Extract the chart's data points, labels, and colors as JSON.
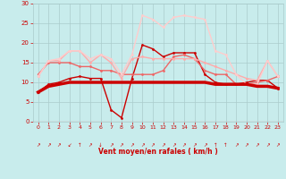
{
  "xlabel": "Vent moyen/en rafales ( km/h )",
  "xlim": [
    -0.5,
    23.5
  ],
  "ylim": [
    0,
    30
  ],
  "yticks": [
    0,
    5,
    10,
    15,
    20,
    25,
    30
  ],
  "xticks": [
    0,
    1,
    2,
    3,
    4,
    5,
    6,
    7,
    8,
    9,
    10,
    11,
    12,
    13,
    14,
    15,
    16,
    17,
    18,
    19,
    20,
    21,
    22,
    23
  ],
  "bg_color": "#c8ecec",
  "grid_color": "#aacccc",
  "lines": [
    {
      "x": [
        0,
        1,
        2,
        3,
        4,
        5,
        6,
        7,
        8,
        9,
        10,
        11,
        12,
        13,
        14,
        15,
        16,
        17,
        18,
        19,
        20,
        21,
        22,
        23
      ],
      "y": [
        7.5,
        9.0,
        9.5,
        10.0,
        10.0,
        10.0,
        10.0,
        10.0,
        10.0,
        10.0,
        10.0,
        10.0,
        10.0,
        10.0,
        10.0,
        10.0,
        10.0,
        9.5,
        9.5,
        9.5,
        9.5,
        9.0,
        9.0,
        8.5
      ],
      "color": "#cc0000",
      "lw": 2.5,
      "marker": null,
      "ms": 0
    },
    {
      "x": [
        0,
        1,
        2,
        3,
        4,
        5,
        6,
        7,
        8,
        9,
        10,
        11,
        12,
        13,
        14,
        15,
        16,
        17,
        18,
        19,
        20,
        21,
        22,
        23
      ],
      "y": [
        7.5,
        9.5,
        10.0,
        11.0,
        11.5,
        11.0,
        11.0,
        3.0,
        1.0,
        11.0,
        19.5,
        18.5,
        16.5,
        17.5,
        17.5,
        17.5,
        12.0,
        10.0,
        9.5,
        9.5,
        10.0,
        10.5,
        10.5,
        8.5
      ],
      "color": "#cc0000",
      "lw": 1.0,
      "marker": "o",
      "ms": 2.0
    },
    {
      "x": [
        0,
        1,
        2,
        3,
        4,
        5,
        6,
        7,
        8,
        9,
        10,
        11,
        12,
        13,
        14,
        15,
        16,
        17,
        18,
        19,
        20,
        21,
        22,
        23
      ],
      "y": [
        12.0,
        15.0,
        15.0,
        15.0,
        14.0,
        14.0,
        13.0,
        13.0,
        12.0,
        12.0,
        12.0,
        12.0,
        13.0,
        16.5,
        17.0,
        16.0,
        13.0,
        12.0,
        12.0,
        9.5,
        9.5,
        10.0,
        10.5,
        11.5
      ],
      "color": "#ee6666",
      "lw": 1.0,
      "marker": "o",
      "ms": 2.0
    },
    {
      "x": [
        0,
        1,
        2,
        3,
        4,
        5,
        6,
        7,
        8,
        9,
        10,
        11,
        12,
        13,
        14,
        15,
        16,
        17,
        18,
        19,
        20,
        21,
        22,
        23
      ],
      "y": [
        11.5,
        15.5,
        15.5,
        18.0,
        18.0,
        15.0,
        17.0,
        15.0,
        11.0,
        16.0,
        16.5,
        16.0,
        16.0,
        16.0,
        16.0,
        16.0,
        15.0,
        14.0,
        13.0,
        12.0,
        11.0,
        10.5,
        15.5,
        11.5
      ],
      "color": "#ffaaaa",
      "lw": 1.0,
      "marker": "o",
      "ms": 2.0
    },
    {
      "x": [
        0,
        1,
        2,
        3,
        4,
        5,
        6,
        7,
        8,
        9,
        10,
        11,
        12,
        13,
        14,
        15,
        16,
        17,
        18,
        19,
        20,
        21,
        22,
        23
      ],
      "y": [
        11.5,
        15.5,
        16.0,
        18.0,
        18.0,
        16.0,
        17.0,
        16.0,
        12.0,
        17.0,
        27.0,
        26.0,
        24.0,
        26.5,
        27.0,
        26.5,
        26.0,
        18.0,
        17.0,
        12.0,
        9.5,
        9.5,
        15.5,
        11.5
      ],
      "color": "#ffcccc",
      "lw": 1.0,
      "marker": "o",
      "ms": 2.0
    }
  ],
  "arrow_symbols": [
    "↗",
    "↗",
    "↗",
    "↙",
    "↑",
    "↗",
    "↓",
    "↗",
    "↗",
    "↗",
    "↗",
    "↗",
    "↗",
    "↗",
    "↗",
    "↗",
    "↗",
    "↑",
    "↑",
    "↗",
    "↗",
    "↗",
    "↗",
    "↗"
  ]
}
